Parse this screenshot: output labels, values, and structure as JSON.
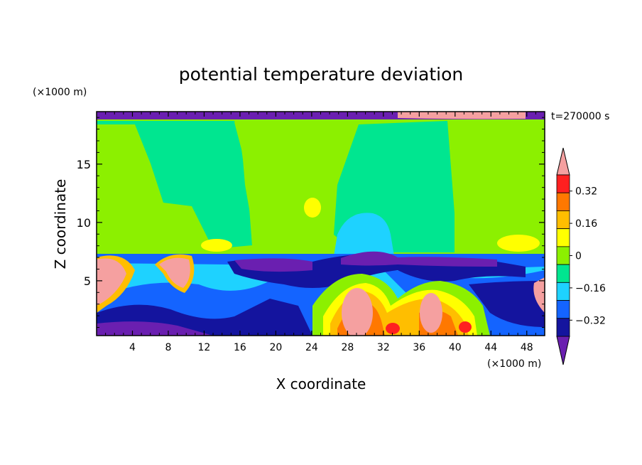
{
  "chart_data": {
    "type": "heatmap",
    "title": "potential temperature deviation",
    "xlabel": "X coordinate",
    "ylabel": "Z coordinate",
    "x_unit": "(×1000 m)",
    "y_unit": "(×1000 m)",
    "time_label": "t=270000 s",
    "xlim": [
      0,
      50
    ],
    "ylim": [
      0.3,
      19.5
    ],
    "xticks": [
      4,
      8,
      12,
      16,
      20,
      24,
      28,
      32,
      36,
      40,
      44,
      48
    ],
    "yticks": [
      5,
      10,
      15
    ],
    "colorbar": {
      "levels": [
        -0.4,
        -0.32,
        -0.24,
        -0.16,
        -0.08,
        0,
        0.08,
        0.16,
        0.24,
        0.32,
        0.4
      ],
      "tick_labels": [
        "0.32",
        "0.16",
        "0",
        "−0.16",
        "−0.32"
      ],
      "tick_values": [
        0.32,
        0.16,
        0,
        -0.16,
        -0.32
      ],
      "colors": [
        "#6a1fb0",
        "#14149e",
        "#1464ff",
        "#1ed2ff",
        "#00e690",
        "#8cf000",
        "#ffff00",
        "#ffbe00",
        "#ff7800",
        "#ff2020",
        "#f5a0a0"
      ]
    },
    "regions": [
      {
        "level_index": 5,
        "x": [
          0,
          50
        ],
        "z": [
          7.5,
          19.0
        ],
        "value": "0 to 0.08"
      },
      {
        "level_index": 4,
        "x": [
          12,
          23
        ],
        "z": [
          7.5,
          19.0
        ],
        "value": "-0.08 to 0"
      },
      {
        "level_index": 4,
        "x": [
          29,
          40
        ],
        "z": [
          7.5,
          19.0
        ],
        "value": "-0.08 to 0"
      },
      {
        "level_index": 0,
        "x": [
          0,
          50
        ],
        "z": [
          19.0,
          19.5
        ],
        "value": "< -0.32"
      },
      {
        "level_index": 1,
        "x": [
          14,
          45
        ],
        "z": [
          6.0,
          7.2
        ],
        "value": "-0.32 to -0.24"
      },
      {
        "level_index": 10,
        "x": [
          0,
          4
        ],
        "z": [
          3.0,
          7.0
        ],
        "value": "> 0.32"
      },
      {
        "level_index": 10,
        "x": [
          27,
          31
        ],
        "z": [
          0.6,
          4.2
        ],
        "value": "> 0.32"
      },
      {
        "level_index": 10,
        "x": [
          37,
          39.5
        ],
        "z": [
          1.5,
          4.0
        ],
        "value": "> 0.32"
      }
    ]
  }
}
